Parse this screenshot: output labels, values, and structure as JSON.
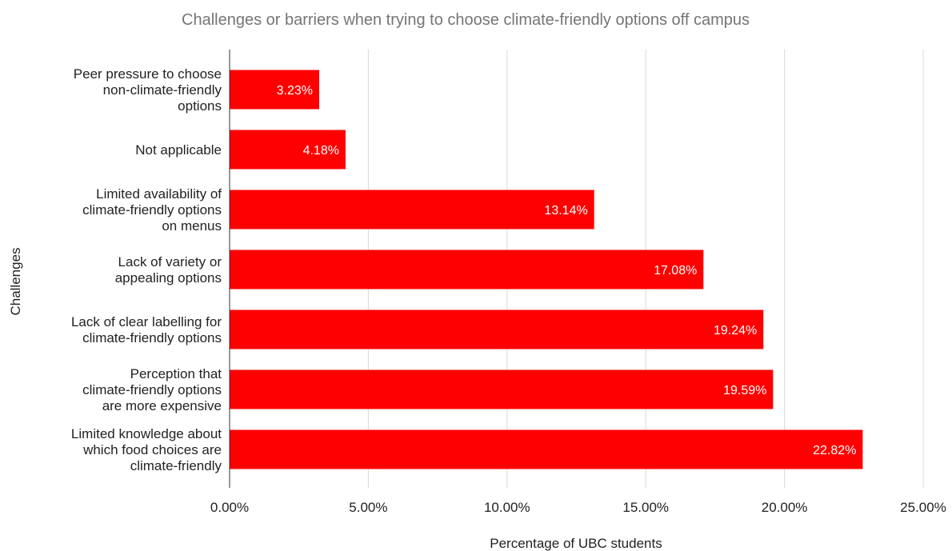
{
  "chart_data": {
    "type": "bar",
    "orientation": "horizontal",
    "title": "Challenges or barriers when trying to choose climate-friendly options off campus",
    "xlabel": "Percentage of UBC students",
    "ylabel": "Challenges",
    "xlim": [
      0,
      25
    ],
    "x_ticks": [
      "0.00%",
      "5.00%",
      "10.00%",
      "15.00%",
      "20.00%",
      "25.00%"
    ],
    "grid": true,
    "legend": "none",
    "bar_color": "#ff0000",
    "categories": [
      [
        "Peer pressure to choose",
        "non-climate-friendly",
        "options"
      ],
      [
        "Not applicable"
      ],
      [
        "Limited availability of",
        "climate-friendly options",
        "on menus"
      ],
      [
        "Lack of variety or",
        "appealing options"
      ],
      [
        "Lack of clear labelling for",
        "climate-friendly options"
      ],
      [
        "Perception that",
        "climate-friendly options",
        "are more expensive"
      ],
      [
        "Limited knowledge about",
        "which food choices are",
        "climate-friendly"
      ]
    ],
    "values": [
      3.23,
      4.18,
      13.14,
      17.08,
      19.24,
      19.59,
      22.82
    ],
    "data_labels": [
      "3.23%",
      "4.18%",
      "13.14%",
      "17.08%",
      "19.24%",
      "19.59%",
      "22.82%"
    ]
  }
}
